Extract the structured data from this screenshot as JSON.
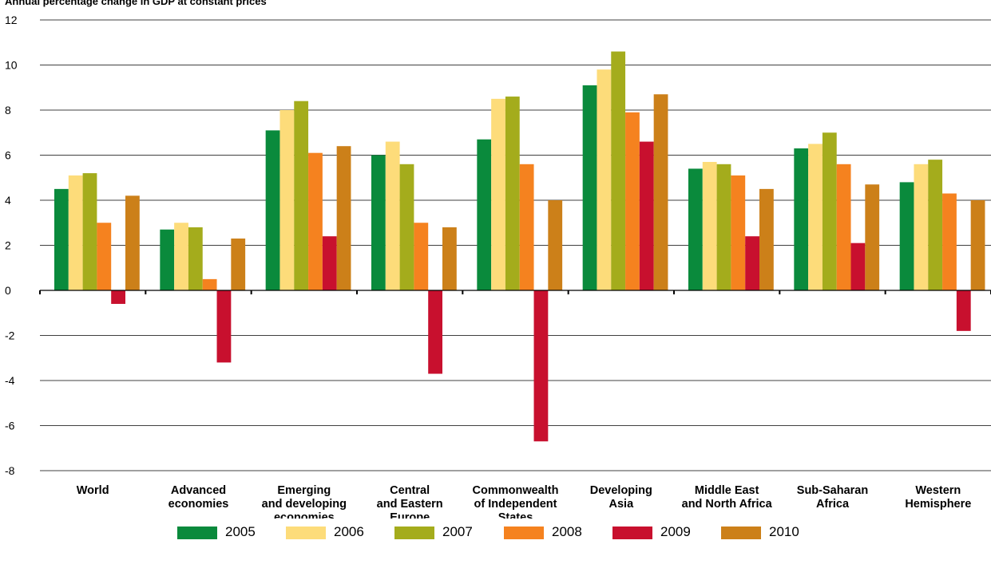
{
  "chart_data": {
    "type": "bar",
    "title": "Annual percentage change in GDP at constant prices",
    "xlabel": "",
    "ylabel": "",
    "ylim": [
      -8,
      12
    ],
    "yticks": [
      "-8",
      "-6",
      "-4",
      "-2",
      "0",
      "2",
      "4",
      "6",
      "8",
      "10",
      "12"
    ],
    "grid": true,
    "legend_position": "bottom",
    "categories": [
      [
        "World"
      ],
      [
        "Advanced",
        "economies"
      ],
      [
        "Emerging",
        "and developing",
        "economies"
      ],
      [
        "Central",
        "and Eastern",
        "Europe"
      ],
      [
        "Commonwealth",
        "of Independent",
        "States"
      ],
      [
        "Developing",
        "Asia"
      ],
      [
        "Middle East",
        "and North Africa"
      ],
      [
        "Sub-Saharan",
        "Africa"
      ],
      [
        "Western",
        "Hemisphere"
      ]
    ],
    "series": [
      {
        "name": "2005",
        "color": "#0a8a3c",
        "values": [
          4.5,
          2.7,
          7.1,
          6.0,
          6.7,
          9.1,
          5.4,
          6.3,
          4.8
        ]
      },
      {
        "name": "2006",
        "color": "#fddc7a",
        "values": [
          5.1,
          3.0,
          8.0,
          6.6,
          8.5,
          9.8,
          5.7,
          6.5,
          5.6
        ]
      },
      {
        "name": "2007",
        "color": "#a4ac1c",
        "values": [
          5.2,
          2.8,
          8.4,
          5.6,
          8.6,
          10.6,
          5.6,
          7.0,
          5.8
        ]
      },
      {
        "name": "2008",
        "color": "#f5821f",
        "values": [
          3.0,
          0.5,
          6.1,
          3.0,
          5.6,
          7.9,
          5.1,
          5.6,
          4.3
        ]
      },
      {
        "name": "2009",
        "color": "#c8102e",
        "values": [
          -0.6,
          -3.2,
          2.4,
          -3.7,
          -6.7,
          6.6,
          2.4,
          2.1,
          -1.8
        ]
      },
      {
        "name": "2010",
        "color": "#cc8019",
        "values": [
          4.2,
          2.3,
          6.4,
          2.8,
          4.0,
          8.7,
          4.5,
          4.7,
          4.0
        ]
      }
    ]
  }
}
